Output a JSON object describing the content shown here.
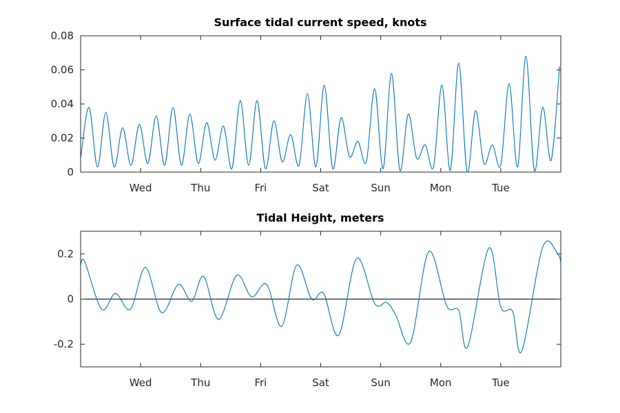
{
  "chart_data": [
    {
      "type": "line",
      "title": "Surface tidal current speed, knots",
      "xlabel": "",
      "ylabel": "",
      "xlim": [
        0,
        8
      ],
      "ylim": [
        0,
        0.08
      ],
      "x_ticks": [
        1,
        2,
        3,
        4,
        5,
        6,
        7
      ],
      "x_tick_labels": [
        "Wed",
        "Thu",
        "Fri",
        "Sat",
        "Sun",
        "Mon",
        "Tue"
      ],
      "y_ticks": [
        0,
        0.02,
        0.04,
        0.06,
        0.08
      ],
      "y_tick_labels": [
        "0",
        "0.02",
        "0.04",
        "0.06",
        "0.08"
      ],
      "grid": false,
      "color": "#0072bd",
      "series": [
        {
          "x": [
            0.0,
            0.14,
            0.28,
            0.42,
            0.56,
            0.7,
            0.84,
            0.98,
            1.12,
            1.26,
            1.4,
            1.54,
            1.68,
            1.82,
            1.96,
            2.1,
            2.24,
            2.38,
            2.52,
            2.66,
            2.8,
            2.94,
            3.08,
            3.22,
            3.36,
            3.5,
            3.64,
            3.78,
            3.92,
            4.06,
            4.2,
            4.34,
            4.48,
            4.62,
            4.76,
            4.9,
            5.04,
            5.18,
            5.32,
            5.46,
            5.6,
            5.74,
            5.88,
            6.02,
            6.16,
            6.3,
            6.44,
            6.58,
            6.72,
            6.86,
            7.0,
            7.14,
            7.28,
            7.42,
            7.56,
            7.7,
            7.84,
            7.98
          ],
          "y": [
            0.008,
            0.038,
            0.003,
            0.035,
            0.003,
            0.026,
            0.004,
            0.028,
            0.005,
            0.033,
            0.004,
            0.038,
            0.004,
            0.034,
            0.005,
            0.029,
            0.007,
            0.027,
            0.002,
            0.042,
            0.004,
            0.042,
            0.002,
            0.03,
            0.006,
            0.022,
            0.004,
            0.046,
            0.003,
            0.051,
            0.002,
            0.032,
            0.009,
            0.018,
            0.006,
            0.049,
            0.002,
            0.058,
            0.001,
            0.034,
            0.008,
            0.016,
            0.003,
            0.051,
            0.001,
            0.064,
            0.0,
            0.036,
            0.005,
            0.016,
            0.004,
            0.052,
            0.003,
            0.068,
            0.001,
            0.038,
            0.007,
            0.062
          ]
        }
      ]
    },
    {
      "type": "line",
      "title": "Tidal Height, meters",
      "xlabel": "",
      "ylabel": "",
      "xlim": [
        0,
        8
      ],
      "ylim": [
        -0.3,
        0.3
      ],
      "x_ticks": [
        1,
        2,
        3,
        4,
        5,
        6,
        7
      ],
      "x_tick_labels": [
        "Wed",
        "Thu",
        "Fri",
        "Sat",
        "Sun",
        "Mon",
        "Tue"
      ],
      "y_ticks": [
        -0.2,
        0,
        0.2
      ],
      "y_tick_labels": [
        "-0.2",
        "0",
        "0.2"
      ],
      "zero_line": true,
      "grid": false,
      "color": "#0072bd",
      "series": [
        {
          "x": [
            0.0,
            0.07,
            0.35,
            0.58,
            0.83,
            1.08,
            1.35,
            1.63,
            1.85,
            2.05,
            2.3,
            2.6,
            2.85,
            3.1,
            3.35,
            3.6,
            3.85,
            4.05,
            4.3,
            4.6,
            4.9,
            5.1,
            5.25,
            5.5,
            5.8,
            6.1,
            6.3,
            6.45,
            6.8,
            7.0,
            7.2,
            7.35,
            7.7,
            7.95,
            8.0
          ],
          "y": [
            0.15,
            0.165,
            -0.045,
            0.025,
            -0.045,
            0.14,
            -0.06,
            0.065,
            -0.01,
            0.1,
            -0.09,
            0.105,
            0.01,
            0.065,
            -0.12,
            0.15,
            0.0,
            0.025,
            -0.16,
            0.18,
            -0.02,
            -0.015,
            -0.07,
            -0.19,
            0.21,
            -0.03,
            -0.05,
            -0.21,
            0.225,
            -0.035,
            -0.055,
            -0.23,
            0.23,
            0.2,
            0.16
          ]
        }
      ]
    }
  ]
}
